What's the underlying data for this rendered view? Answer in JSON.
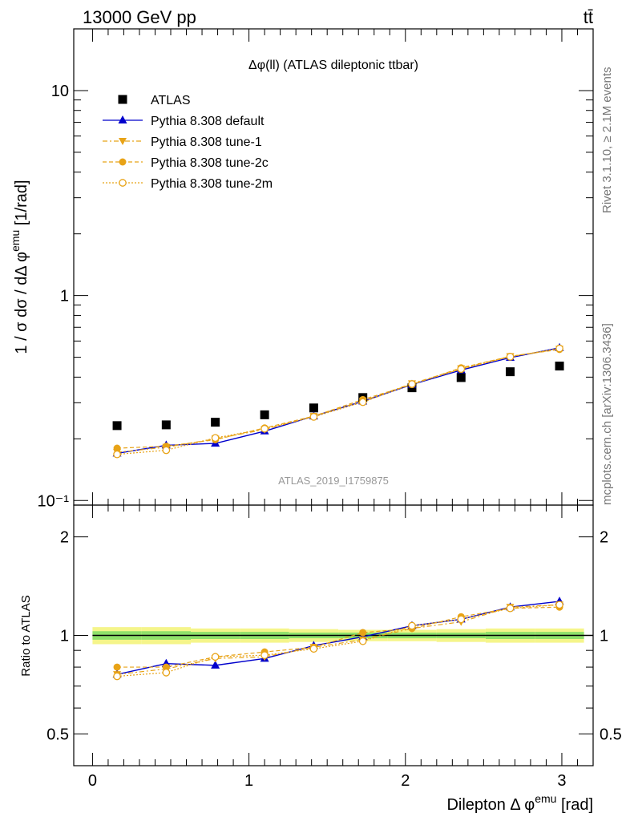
{
  "header": {
    "left": "13000 GeV pp",
    "right": "tt̄"
  },
  "side_labels": {
    "rivet": "Rivet 3.1.10, ≥ 2.1M events",
    "mcplots": "mcplots.cern.ch [arXiv:1306.3436]"
  },
  "colors": {
    "atlas": "#000000",
    "default": "#0000cc",
    "tune": "#e8a317",
    "band_inner": "#8ee06a",
    "band_outer": "#f5f58a"
  },
  "chart_data": [
    {
      "type": "scatter",
      "title": "Δφ(ll) (ATLAS dileptonic ttbar)",
      "ylabel": "1 / σ  dσ / dΔ φ^emu [1/rad]",
      "xlim": [
        -0.12,
        3.2
      ],
      "ylim": [
        0.095,
        20
      ],
      "yscale": "log",
      "yticks": [
        {
          "value": 0.1,
          "label": "10⁻¹"
        },
        {
          "value": 1,
          "label": "1"
        },
        {
          "value": 10,
          "label": "10"
        }
      ],
      "watermark": "ATLAS_2019_I1759875",
      "legend_position": "top-left",
      "x": [
        0.157,
        0.471,
        0.785,
        1.1,
        1.414,
        1.728,
        2.042,
        2.356,
        2.67,
        2.985
      ],
      "series": [
        {
          "name": "ATLAS",
          "style": "data",
          "values": [
            0.232,
            0.234,
            0.241,
            0.262,
            0.283,
            0.318,
            0.355,
            0.398,
            0.425,
            0.453
          ]
        },
        {
          "name": "Pythia 8.308 default",
          "style": "default",
          "values": [
            0.17,
            0.186,
            0.19,
            0.218,
            0.258,
            0.305,
            0.368,
            0.433,
            0.498,
            0.556
          ]
        },
        {
          "name": "Pythia 8.308 tune-1",
          "style": "tune1",
          "values": [
            0.172,
            0.182,
            0.2,
            0.222,
            0.258,
            0.306,
            0.372,
            0.44,
            0.505,
            0.548
          ]
        },
        {
          "name": "Pythia 8.308 tune-2c",
          "style": "tune2c",
          "values": [
            0.18,
            0.184,
            0.198,
            0.226,
            0.258,
            0.311,
            0.368,
            0.444,
            0.505,
            0.546
          ]
        },
        {
          "name": "Pythia 8.308 tune-2m",
          "style": "tune2m",
          "values": [
            0.168,
            0.176,
            0.202,
            0.224,
            0.256,
            0.302,
            0.37,
            0.438,
            0.503,
            0.552
          ]
        }
      ]
    },
    {
      "type": "line",
      "ylabel": "Ratio to ATLAS",
      "xlabel": "Dilepton Δ φ^emu [rad]",
      "xlim": [
        -0.12,
        3.2
      ],
      "ylim": [
        0.4,
        2.5
      ],
      "yscale": "log",
      "yticks": [
        {
          "value": 0.5,
          "label": "0.5"
        },
        {
          "value": 1,
          "label": "1"
        },
        {
          "value": 2,
          "label": "2"
        }
      ],
      "xticks": [
        {
          "value": 0,
          "label": "0"
        },
        {
          "value": 1,
          "label": "1"
        },
        {
          "value": 2,
          "label": "2"
        },
        {
          "value": 3,
          "label": "3"
        }
      ],
      "x": [
        0.157,
        0.471,
        0.785,
        1.1,
        1.414,
        1.728,
        2.042,
        2.356,
        2.67,
        2.985
      ],
      "band_inner": [
        0.03,
        0.03,
        0.025,
        0.025,
        0.02,
        0.02,
        0.02,
        0.02,
        0.025,
        0.025
      ],
      "band_outer": [
        0.06,
        0.06,
        0.05,
        0.05,
        0.045,
        0.04,
        0.04,
        0.045,
        0.05,
        0.05
      ],
      "series": [
        {
          "name": "Pythia 8.308 default",
          "style": "default",
          "values": [
            0.76,
            0.82,
            0.81,
            0.85,
            0.93,
            0.99,
            1.07,
            1.12,
            1.22,
            1.27
          ]
        },
        {
          "name": "Pythia 8.308 tune-1",
          "style": "tune1",
          "values": [
            0.76,
            0.79,
            0.85,
            0.86,
            0.92,
            0.97,
            1.05,
            1.1,
            1.22,
            1.24
          ]
        },
        {
          "name": "Pythia 8.308 tune-2c",
          "style": "tune2c",
          "values": [
            0.8,
            0.8,
            0.86,
            0.89,
            0.92,
            1.02,
            1.05,
            1.14,
            1.21,
            1.22
          ]
        },
        {
          "name": "Pythia 8.308 tune-2m",
          "style": "tune2m",
          "values": [
            0.75,
            0.77,
            0.86,
            0.87,
            0.91,
            0.96,
            1.07,
            1.12,
            1.21,
            1.24
          ]
        }
      ]
    }
  ]
}
